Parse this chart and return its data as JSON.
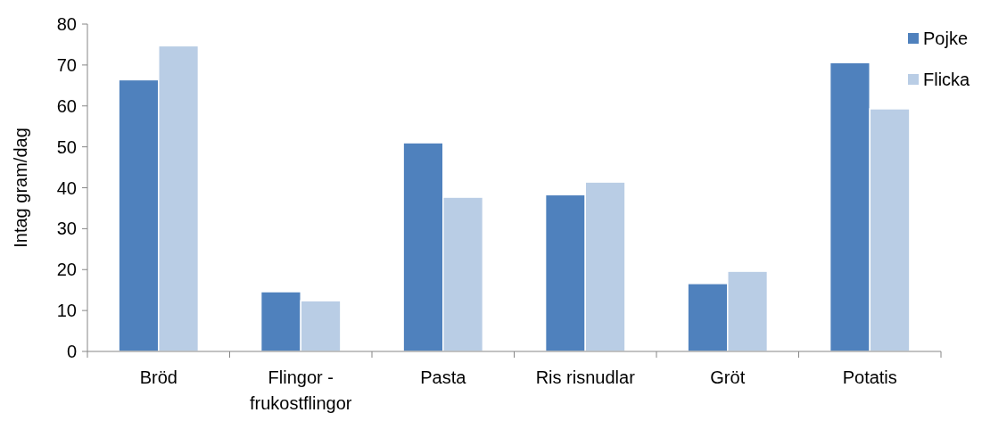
{
  "chart_data": {
    "type": "bar",
    "ylabel": "Intag gram/dag",
    "categories": [
      "Bröd",
      "Flingor - frukostflingor",
      "Pasta",
      "Ris risnudlar",
      "Gröt",
      "Potatis"
    ],
    "series": [
      {
        "name": "Pojke",
        "color": "#4f81bd",
        "values": [
          66.4,
          14.6,
          51,
          38.3,
          16.6,
          70.6
        ]
      },
      {
        "name": "Flicka",
        "color": "#b9cde5",
        "values": [
          74.7,
          12.4,
          37.7,
          41.4,
          19.6,
          59.3
        ]
      }
    ],
    "ylim": [
      0,
      80
    ],
    "yticks": [
      0,
      10,
      20,
      30,
      40,
      50,
      60,
      70,
      80
    ],
    "grid": false,
    "legend": "top right"
  }
}
